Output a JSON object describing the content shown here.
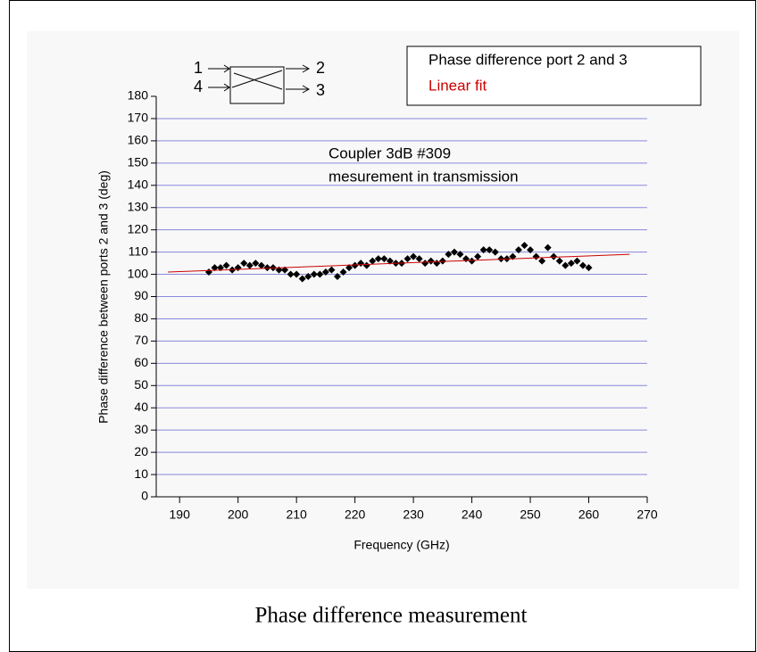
{
  "chart_data": {
    "type": "scatter",
    "xlabel": "Frequency (GHz)",
    "ylabel": "Phase difference between ports 2 and 3 (deg)",
    "annotations": [
      "Coupler 3dB #309",
      "mesurement in transmission"
    ],
    "diagram_labels": [
      "1",
      "4",
      "2",
      "3"
    ],
    "xlim": [
      186,
      270
    ],
    "xticks": [
      190,
      200,
      210,
      220,
      230,
      240,
      250,
      260,
      270
    ],
    "ylim": [
      0,
      180
    ],
    "yticks": [
      0,
      10,
      20,
      30,
      40,
      50,
      60,
      70,
      80,
      90,
      100,
      110,
      120,
      130,
      140,
      150,
      160,
      170,
      180
    ],
    "grid": true,
    "grid_color": "#8888dd",
    "legend": "upper right",
    "series": [
      {
        "name": "Phase difference port 2 and 3",
        "type": "scatter",
        "color": "#000000",
        "x": [
          195,
          196,
          197,
          198,
          199,
          200,
          201,
          202,
          203,
          204,
          205,
          206,
          207,
          208,
          209,
          210,
          211,
          212,
          213,
          214,
          215,
          216,
          217,
          218,
          219,
          220,
          221,
          222,
          223,
          224,
          225,
          226,
          227,
          228,
          229,
          230,
          231,
          232,
          233,
          234,
          235,
          236,
          237,
          238,
          239,
          240,
          241,
          242,
          243,
          244,
          245,
          246,
          247,
          248,
          249,
          250,
          251,
          252,
          253,
          254,
          255,
          256,
          257,
          258,
          259,
          260
        ],
        "values": [
          101,
          103,
          103,
          104,
          102,
          103,
          105,
          104,
          105,
          104,
          103,
          103,
          102,
          102,
          100,
          100,
          98,
          99,
          100,
          100,
          101,
          102,
          99,
          101,
          103,
          104,
          105,
          104,
          106,
          107,
          107,
          106,
          105,
          105,
          107,
          108,
          107,
          105,
          106,
          105,
          106,
          109,
          110,
          109,
          107,
          106,
          108,
          111,
          111,
          110,
          107,
          107,
          108,
          111,
          113,
          111,
          108,
          106,
          112,
          108,
          106,
          104,
          105,
          106,
          104,
          103
        ]
      },
      {
        "name": "Linear fit",
        "type": "line",
        "color": "#cc0000",
        "x": [
          188,
          267
        ],
        "values": [
          101,
          109
        ]
      }
    ]
  },
  "caption": "Phase difference measurement"
}
